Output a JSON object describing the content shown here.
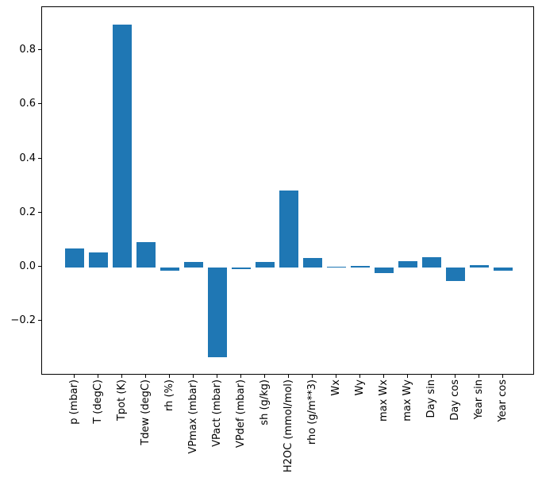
{
  "figure": {
    "background": "#ffffff",
    "axes_edge_color": "#000000",
    "tick_color": "#000000",
    "label_color": "#000000"
  },
  "chart_data": {
    "type": "bar",
    "title": "",
    "xlabel": "",
    "ylabel": "",
    "categories": [
      "p (mbar)",
      "T (degC)",
      "Tpot (K)",
      "Tdew (degC)",
      "rh (%)",
      "VPmax (mbar)",
      "VPact (mbar)",
      "VPdef (mbar)",
      "sh (g/kg)",
      "H2OC (mmol/mol)",
      "rho (g/m**3)",
      "Wx",
      "Wy",
      "max Wx",
      "max Wy",
      "Day sin",
      "Day cos",
      "Year sin",
      "Year cos"
    ],
    "values": [
      0.068,
      0.054,
      0.896,
      0.091,
      -0.014,
      0.02,
      -0.334,
      -0.006,
      0.018,
      0.283,
      0.034,
      0.0005,
      0.004,
      -0.021,
      0.021,
      0.038,
      -0.05,
      0.006,
      -0.013
    ],
    "bar_color": "#1f77b4",
    "ylim": [
      -0.4,
      0.96
    ],
    "yticks": [
      {
        "value": -0.2,
        "label": "−0.2"
      },
      {
        "value": 0.0,
        "label": "0.0"
      },
      {
        "value": 0.2,
        "label": "0.2"
      },
      {
        "value": 0.4,
        "label": "0.4"
      },
      {
        "value": 0.6,
        "label": "0.6"
      },
      {
        "value": 0.8,
        "label": "0.8"
      }
    ],
    "grid": false,
    "legend_position": "none"
  }
}
